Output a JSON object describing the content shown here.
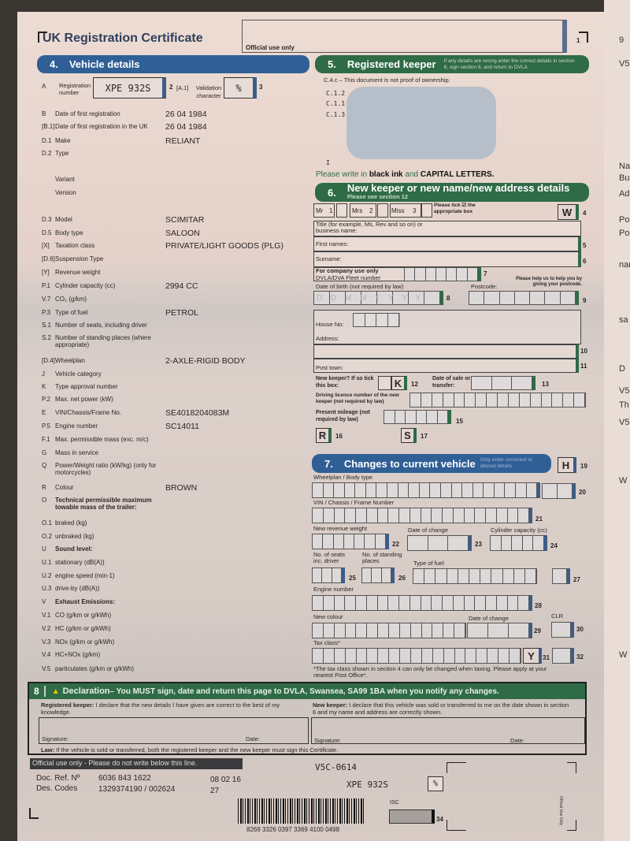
{
  "title": "UK Registration Certificate",
  "official_use_only": "Official use only",
  "box_number_1": "1",
  "section4": {
    "number": "4.",
    "title": "Vehicle details",
    "reg_code": "A",
    "reg_label": "Registration number",
    "reg_value": "XPE 932S",
    "reg_num": "2",
    "a1_code": "[A.1]",
    "validation_label": "Validation character",
    "validation_value": "%",
    "validation_num": "3",
    "rows": [
      {
        "code": "B",
        "label": "Date of first registration",
        "value": "26 04 1984"
      },
      {
        "code": "[B.1]",
        "label": "Date of first registration in the UK",
        "value": "26 04 1984"
      },
      {
        "code": "D.1",
        "label": "Make",
        "value": "RELIANT"
      },
      {
        "code": "D.2",
        "label": "Type",
        "value": ""
      },
      {
        "code": "",
        "label": "      Variant",
        "value": ""
      },
      {
        "code": "",
        "label": "      Version",
        "value": ""
      },
      {
        "code": "D.3",
        "label": "Model",
        "value": "SCIMITAR"
      },
      {
        "code": "D.5",
        "label": "Body type",
        "value": "SALOON"
      },
      {
        "code": "[X]",
        "label": "Taxation class",
        "value": "PRIVATE/LIGHT GOODS (PLG)"
      },
      {
        "code": "[D.6]",
        "label": "Suspension Type",
        "value": ""
      },
      {
        "code": "[Y]",
        "label": "Revenue weight",
        "value": ""
      },
      {
        "code": "P.1",
        "label": "Cylinder capacity (cc)",
        "value": "2994 CC"
      },
      {
        "code": "V.7",
        "label": "CO₂ (g/km)",
        "value": ""
      },
      {
        "code": "P.3",
        "label": "Type of fuel",
        "value": "PETROL"
      },
      {
        "code": "S.1",
        "label": "Number of seats, including driver",
        "value": ""
      },
      {
        "code": "S.2",
        "label": "Number of standing places (where appropriate)",
        "value": ""
      },
      {
        "code": "[D.4]",
        "label": "Wheelplan",
        "value": "2-AXLE-RIGID BODY"
      },
      {
        "code": "J",
        "label": "Vehicle category",
        "value": ""
      },
      {
        "code": "K",
        "label": "Type approval number",
        "value": ""
      },
      {
        "code": "P.2",
        "label": "Max. net power (kW)",
        "value": ""
      },
      {
        "code": "E",
        "label": "VIN/Chassis/Frame No.",
        "value": "SE4018204083M"
      },
      {
        "code": "P.5",
        "label": "Engine number",
        "value": "SC14011"
      },
      {
        "code": "F.1",
        "label": "Max. permissible mass (exc. m/c)",
        "value": ""
      },
      {
        "code": "G",
        "label": "Mass in service",
        "value": ""
      },
      {
        "code": "Q",
        "label": "Power/Weight ratio (kW/kg) (only for motorcycles)",
        "value": ""
      },
      {
        "code": "R",
        "label": "Colour",
        "value": "BROWN"
      },
      {
        "code": "O",
        "label": "Technical permissible maximum towable mass of the trailer:",
        "value": "",
        "bold": true
      },
      {
        "code": "O.1",
        "label": "braked (kg)",
        "value": ""
      },
      {
        "code": "O.2",
        "label": "unbraked (kg)",
        "value": ""
      },
      {
        "code": "U",
        "label": "Sound level:",
        "value": "",
        "bold": true
      },
      {
        "code": "U.1",
        "label": "stationary (dB(A))",
        "value": ""
      },
      {
        "code": "U.2",
        "label": "engine speed (min-1)",
        "value": ""
      },
      {
        "code": "U.3",
        "label": "drive-by (dB(A))",
        "value": ""
      },
      {
        "code": "V",
        "label": "Exhaust Emissions:",
        "value": "",
        "bold": true
      },
      {
        "code": "V.1",
        "label": "CO (g/km or g/kWh)",
        "value": ""
      },
      {
        "code": "V.2",
        "label": "HC (g/km or g/kWh)",
        "value": ""
      },
      {
        "code": "V.3",
        "label": "NOx (g/km or g/kWh)",
        "value": ""
      },
      {
        "code": "V.4",
        "label": "HC+NOx (g/km)",
        "value": ""
      },
      {
        "code": "V.5",
        "label": "particulates (g/km or g/kWh)",
        "value": ""
      }
    ]
  },
  "section5": {
    "number": "5.",
    "title": "Registered keeper",
    "note": "If any details are wrong enter the correct details in section 6, sign section 8, and return to DVLA",
    "ownership": "C.4.c – This document is not proof of ownership.",
    "c12": "C.1.2",
    "c11": "C.1.1",
    "c13": "C.1.3",
    "i": "I"
  },
  "instruction": {
    "pre": "Please write in ",
    "b1": "black ink",
    "mid": " and ",
    "b2": "CAPITAL LETTERS."
  },
  "section6": {
    "number": "6.",
    "title": "New keeper or new name/new address details",
    "subtitle": "Please see section 12",
    "mr": "Mr",
    "mr_n": "1",
    "mrs": "Mrs",
    "mrs_n": "2",
    "miss": "Miss",
    "miss_n": "3",
    "tick_note": "Please tick ☑ the appropriate box",
    "w": "W",
    "n4": "4",
    "title_label": "Title (for example, Ms, Rev and so on) or business name:",
    "first_names": "First names:",
    "n5": "5",
    "surname": "Surname:",
    "n6": "6",
    "company": "For company use only",
    "fleet": "DVLA/DVA Fleet number",
    "n7": "7",
    "dob": "Date of birth (not required by law)",
    "dob_ph": "D D M M Y Y Y Y",
    "n8": "8",
    "postcode": "Postcode:",
    "postcode_note": "Please help us to help you by giving your postcode.",
    "n9": "9",
    "house_no": "House No:",
    "address": "Address:",
    "n10": "10",
    "post_town": "Post town:",
    "n11": "11",
    "new_keeper": "New keeper? If so tick this box:",
    "k": "K",
    "n12": "12",
    "date_sale": "Date of sale or transfer:",
    "date_ph": "D D M M Y Y",
    "n13": "13",
    "licence": "Driving licence number of the new keeper (not required by law)",
    "mileage": "Present mileage (not required by law)",
    "n15": "15",
    "r": "R",
    "n16": "16",
    "s": "S",
    "n17": "17"
  },
  "section7": {
    "number": "7.",
    "title": "Changes to current vehicle",
    "note": "Only enter corrected or altered details",
    "h": "H",
    "n19": "19",
    "wheelplan": "Wheelplan / Body type",
    "n20": "20",
    "vin": "VIN / Chassis / Frame Number",
    "n21": "21",
    "revenue": "New revenue weight",
    "n22": "22",
    "date_change": "Date of change",
    "n23": "23",
    "cylinder": "Cylinder capacity (cc)",
    "n24": "24",
    "seats": "No. of seats inc. driver",
    "n25": "25",
    "standing": "No. of standing places",
    "n26": "26",
    "fuel": "Type of fuel",
    "n27": "27",
    "engine": "Engine number",
    "n28": "28",
    "colour": "New colour",
    "date_change2": "Date of change",
    "n29": "29",
    "clr": "CLR",
    "n30": "30",
    "tax": "Tax class*",
    "y": "Y",
    "n31": "31",
    "n32": "32",
    "footnote": "*The tax class shown in section 4 can only be changed when taxing. Please apply at your nearest Post Office*."
  },
  "section8": {
    "number": "8",
    "title": "Declaration",
    "message": " – You MUST sign, date and return this page to DVLA, Swansea, SA99 1BA when you notify any changes.",
    "rk_bold": "Registered keeper:",
    "rk_text": " I declare that the new details I have given are correct to the best of my knowledge.",
    "nk_bold": "New keeper:",
    "nk_text": " I declare that this vehicle was sold or transferred to me on the date shown in section 6 and my name and address are correctly shown.",
    "signature": "Signature:",
    "date": "Date:",
    "law_bold": "Law:",
    "law_text": " If the vehicle is sold or transferred, both the registered keeper and the new keeper must sign this Certificate."
  },
  "official": {
    "bar": "Official use only - Please do not write below this line.",
    "doc_ref_label": "Doc. Ref. Nº",
    "doc_ref": "6036 843 1622",
    "doc_date": "08 02 16",
    "des_label": "Des. Codes",
    "des": "1329374190 / 002624",
    "des2": "27",
    "form": "V5C-0614",
    "reg": "XPE 932S",
    "check": "%",
    "barcode": "8269 3326 0397 3369 4100 0498",
    "isc": "ISC",
    "n34": "34",
    "side": "Official Use Only"
  },
  "next_page_fragments": [
    "9",
    "V5",
    "Nar",
    "Bus",
    "Ad",
    "Pos",
    "Pos",
    "nar",
    "sa",
    "D",
    "V5",
    "Th",
    "V5",
    "W",
    "W"
  ],
  "colors": {
    "blue": "#2f5f95",
    "green": "#2f6b46"
  }
}
